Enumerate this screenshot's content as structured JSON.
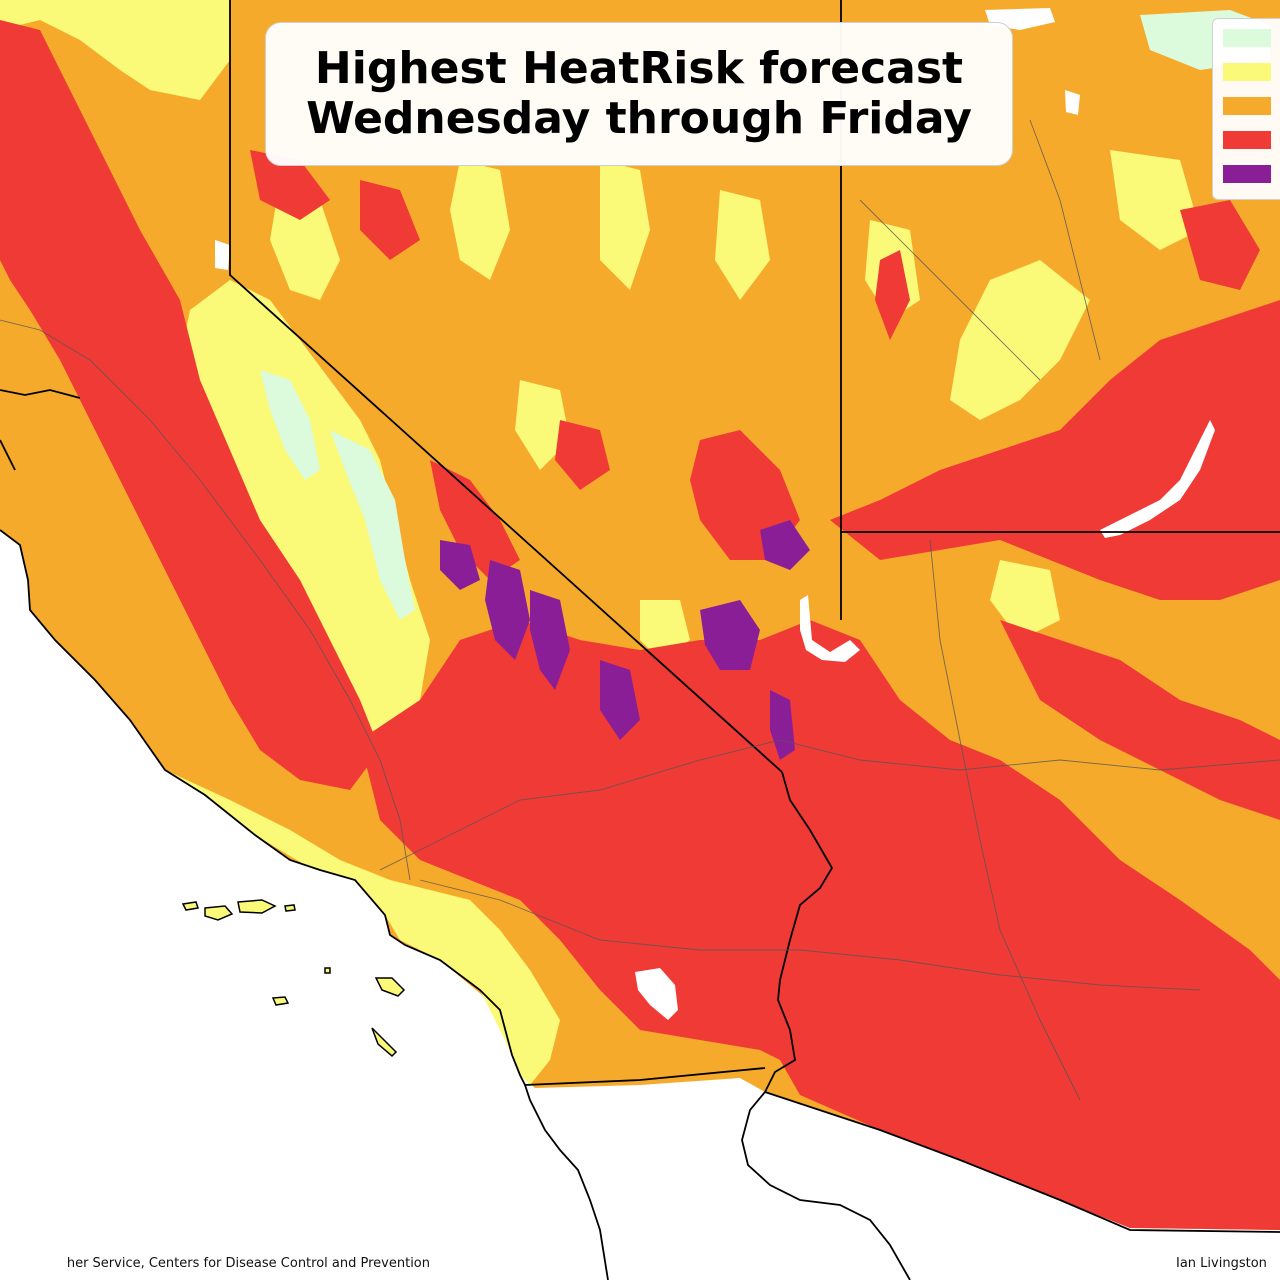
{
  "title": {
    "line1": "Highest HeatRisk forecast",
    "line2": "Wednesday through Friday"
  },
  "legend": {
    "items": [
      {
        "color": "#dcfadc"
      },
      {
        "color": "#fafa78"
      },
      {
        "color": "#f6aa2c"
      },
      {
        "color": "#f03a36"
      },
      {
        "color": "#8a1e96"
      }
    ]
  },
  "colors": {
    "little": "#dcfadc",
    "minor": "#fafa78",
    "moderate": "#f6aa2c",
    "major": "#f03a36",
    "extreme": "#8a1e96",
    "water": "#ffffff",
    "ocean": "#ffffff",
    "boundary": "#000000"
  },
  "credits": {
    "left": "her Service, Centers for Disease Control and Prevention",
    "right": "Ian Livingston"
  }
}
